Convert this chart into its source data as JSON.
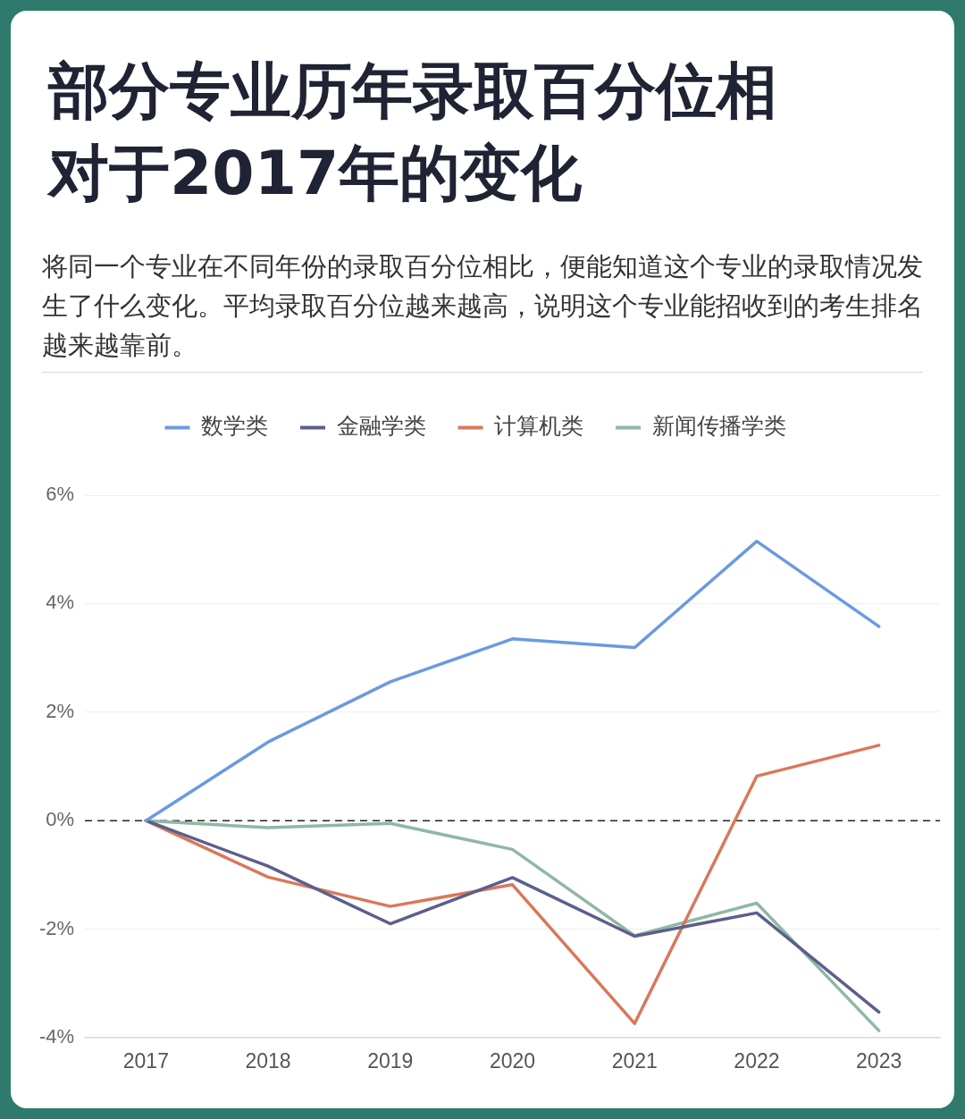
{
  "chart_data": {
    "type": "line",
    "title": "部分专业历年录取百分位相对于2017年的变化",
    "subtitle": "将同一个专业在不同年份的录取百分位相比，便能知道这个专业的录取情况发生了什么变化。平均录取百分位越来越高，说明这个专业能招收到的考生排名越来越靠前。",
    "categories": [
      "2017",
      "2018",
      "2019",
      "2020",
      "2021",
      "2022",
      "2023"
    ],
    "series": [
      {
        "name": "数学类",
        "color": "#6a9ae0",
        "values": [
          0,
          1.45,
          2.56,
          3.35,
          3.19,
          5.15,
          3.58
        ]
      },
      {
        "name": "金融学类",
        "color": "#5c5e8c",
        "values": [
          0,
          -0.84,
          -1.9,
          -1.05,
          -2.13,
          -1.7,
          -3.53
        ]
      },
      {
        "name": "计算机类",
        "color": "#d9785a",
        "values": [
          0,
          -1.04,
          -1.58,
          -1.18,
          -3.74,
          0.82,
          1.39
        ]
      },
      {
        "name": "新闻传播学类",
        "color": "#8fb8a2",
        "values": [
          0,
          -0.13,
          -0.05,
          -0.53,
          -2.12,
          -1.52,
          -3.87
        ]
      }
    ],
    "ylim": [
      -4,
      6
    ],
    "yticks": [
      {
        "value": -4,
        "label": "-4%"
      },
      {
        "value": -2,
        "label": "-2%"
      },
      {
        "value": 0,
        "label": "0%"
      },
      {
        "value": 2,
        "label": "2%"
      },
      {
        "value": 4,
        "label": "4%"
      },
      {
        "value": 6,
        "label": "6%"
      }
    ],
    "grid": "y",
    "legend": "top",
    "marker": "none",
    "ref_lines": [
      {
        "axis": "y",
        "value": 0,
        "color": "#222222",
        "line_style": "dashed"
      }
    ]
  }
}
